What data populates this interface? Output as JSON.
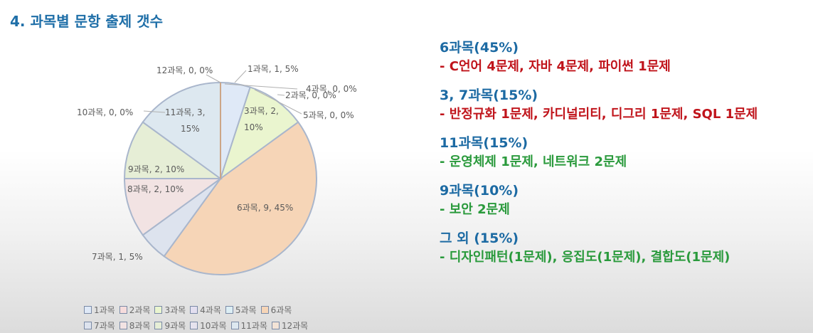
{
  "page": {
    "title": "4. 과목별 문항 출제 갯수"
  },
  "chart_data": {
    "type": "pie",
    "slices": [
      {
        "category": "1과목",
        "value": 1,
        "percent": "5%",
        "label": "1과목, 1, 5%",
        "color": "#dfe9f7"
      },
      {
        "category": "2과목",
        "value": 0,
        "percent": "0%",
        "label": "2과목, 0, 0%",
        "color": "#f6dcdc"
      },
      {
        "category": "3과목",
        "value": 2,
        "percent": "10%",
        "label": "3과목, 2, 10%",
        "color": "#eaf5cf"
      },
      {
        "category": "4과목",
        "value": 0,
        "percent": "0%",
        "label": "4과목, 0, 0%",
        "color": "#e3dff0"
      },
      {
        "category": "5과목",
        "value": 0,
        "percent": "0%",
        "label": "5과목, 0, 0%",
        "color": "#dceef4"
      },
      {
        "category": "6과목",
        "value": 9,
        "percent": "45%",
        "label": "6과목, 9, 45%",
        "color": "#f6d5b7"
      },
      {
        "category": "7과목",
        "value": 1,
        "percent": "5%",
        "label": "7과목, 1, 5%",
        "color": "#dde3ee"
      },
      {
        "category": "8과목",
        "value": 2,
        "percent": "10%",
        "label": "8과목, 2, 10%",
        "color": "#f2e3e3"
      },
      {
        "category": "9과목",
        "value": 2,
        "percent": "10%",
        "label": "9과목, 2, 10%",
        "color": "#e6eed6"
      },
      {
        "category": "10과목",
        "value": 0,
        "percent": "0%",
        "label": "10과목, 0, 0%",
        "color": "#e6e3ee"
      },
      {
        "category": "11과목",
        "value": 3,
        "percent": "15%",
        "label": "11과목, 3, 15%",
        "color": "#dde8f0"
      },
      {
        "category": "12과목",
        "value": 0,
        "percent": "0%",
        "label": "12과목, 0, 0%",
        "color": "#f3e3d6"
      }
    ],
    "slice_border_color": "#a9b6cc",
    "legend_position": "bottom"
  },
  "notes": [
    {
      "heading": "6과목(45%)",
      "detail": " - C언어 4문제, 자바 4문제, 파이썬 1문제",
      "color": "red"
    },
    {
      "heading": "3, 7과목(15%)",
      "detail": " - 반정규화 1문제, 카디널리티, 디그리 1문제, SQL 1문제",
      "color": "red"
    },
    {
      "heading": "11과목(15%)",
      "detail": " - 운영체제 1문제, 네트워크 2문제",
      "color": "green"
    },
    {
      "heading": "9과목(10%)",
      "detail": " - 보안 2문제",
      "color": "green"
    },
    {
      "heading": "그 외 (15%)",
      "detail": " - 디자인패턴(1문제), 응집도(1문제), 결합도(1문제)",
      "color": "green"
    }
  ]
}
